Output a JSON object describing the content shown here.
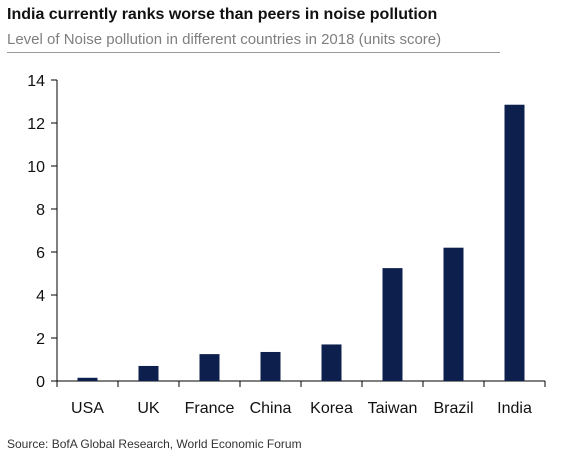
{
  "header": {
    "title": "India currently ranks worse than peers in noise pollution",
    "subtitle": "Level of Noise pollution in different countries in 2018 (units score)"
  },
  "footer": {
    "source": "Source: BofA Global Research, World Economic Forum"
  },
  "chart_data": {
    "type": "bar",
    "categories": [
      "USA",
      "UK",
      "France",
      "China",
      "Korea",
      "Taiwan",
      "Brazil",
      "India"
    ],
    "values": [
      0.15,
      0.7,
      1.25,
      1.35,
      1.7,
      5.25,
      6.2,
      12.85
    ],
    "ylim": [
      0,
      14
    ],
    "yticks": [
      0,
      2,
      4,
      6,
      8,
      10,
      12,
      14
    ],
    "grid": false,
    "bar_color": "#0d1f4d"
  }
}
